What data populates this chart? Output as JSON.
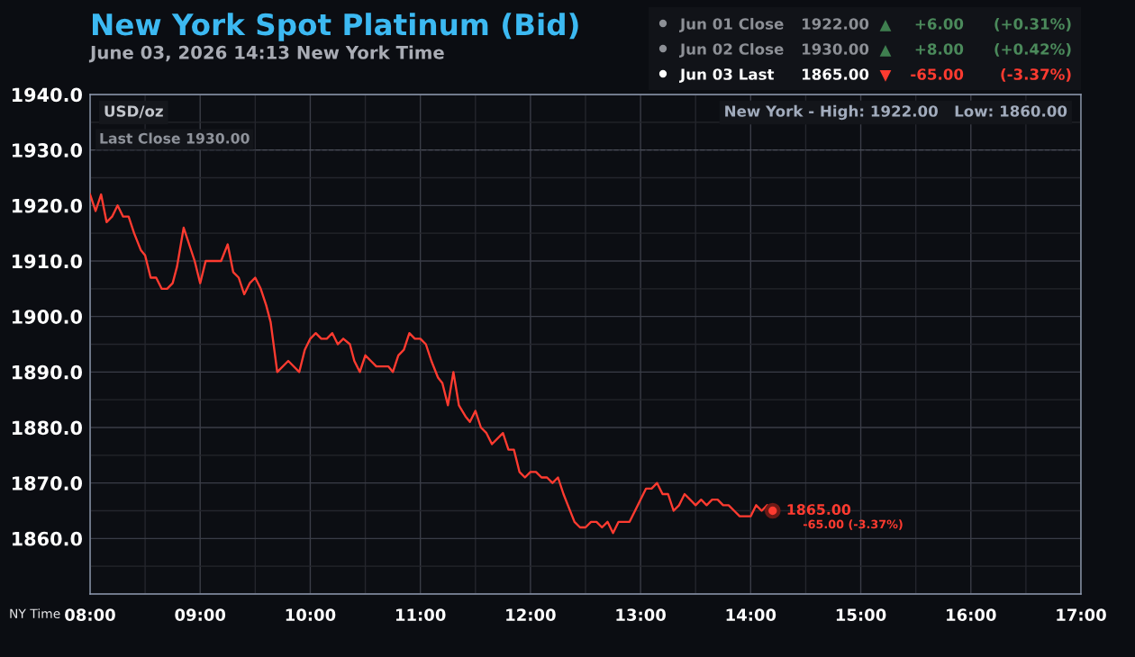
{
  "chart_data": {
    "type": "line",
    "title": "New York Spot Platinum (Bid)",
    "subtitle": "June 03, 2026 14:13 New York Time",
    "xlabel": "NY Time",
    "ylabel": "USD/oz",
    "series": [
      {
        "color": "#ff3b30",
        "x": [
          8.0,
          8.05,
          8.1,
          8.15,
          8.2,
          8.25,
          8.3,
          8.35,
          8.4,
          8.46,
          8.5,
          8.55,
          8.6,
          8.65,
          8.7,
          8.75,
          8.79,
          8.85,
          8.9,
          8.95,
          9.0,
          9.05,
          9.19,
          9.25,
          9.3,
          9.35,
          9.4,
          9.45,
          9.5,
          9.55,
          9.6,
          9.64,
          9.7,
          9.8,
          9.9,
          9.95,
          10.0,
          10.05,
          10.1,
          10.15,
          10.2,
          10.25,
          10.3,
          10.36,
          10.4,
          10.45,
          10.5,
          10.55,
          10.6,
          10.71,
          10.75,
          10.8,
          10.85,
          10.9,
          10.95,
          11.0,
          11.05,
          11.1,
          11.16,
          11.2,
          11.25,
          11.3,
          11.35,
          11.41,
          11.45,
          11.5,
          11.55,
          11.6,
          11.65,
          11.75,
          11.8,
          11.85,
          11.9,
          11.95,
          12.0,
          12.05,
          12.1,
          12.15,
          12.2,
          12.25,
          12.3,
          12.34,
          12.4,
          12.45,
          12.5,
          12.55,
          12.6,
          12.65,
          12.7,
          12.75,
          12.8,
          12.9,
          12.95,
          13.05,
          13.1,
          13.15,
          13.2,
          13.25,
          13.3,
          13.35,
          13.4,
          13.45,
          13.5,
          13.55,
          13.6,
          13.65,
          13.7,
          13.75,
          13.8,
          13.85,
          13.9,
          14.0,
          14.05,
          14.1,
          14.15,
          14.2
        ],
        "values": [
          1922,
          1919,
          1922,
          1917,
          1918,
          1920,
          1918,
          1918,
          1915,
          1912,
          1911,
          1907,
          1907,
          1905,
          1905,
          1906,
          1909,
          1916,
          1913,
          1910,
          1906,
          1910,
          1910,
          1913,
          1908,
          1907,
          1904,
          1906,
          1907,
          1905,
          1902,
          1899,
          1890,
          1892,
          1890,
          1894,
          1896,
          1897,
          1896,
          1896,
          1897,
          1895,
          1896,
          1895,
          1892,
          1890,
          1893,
          1892,
          1891,
          1891,
          1890,
          1893,
          1894,
          1897,
          1896,
          1896,
          1895,
          1892,
          1889,
          1888,
          1884,
          1890,
          1884,
          1882,
          1881,
          1883,
          1880,
          1879,
          1877,
          1879,
          1876,
          1876,
          1872,
          1871,
          1872,
          1872,
          1871,
          1871,
          1870,
          1871,
          1868,
          1866,
          1863,
          1862,
          1862,
          1863,
          1863,
          1862,
          1863,
          1861,
          1863,
          1863,
          1865,
          1869,
          1869,
          1870,
          1868,
          1868,
          1865,
          1866,
          1868,
          1867,
          1866,
          1867,
          1866,
          1867,
          1867,
          1866,
          1866,
          1865,
          1864,
          1864,
          1866,
          1865,
          1866,
          1865
        ]
      },
      {
        "type": "scatter",
        "color": "#ff3b30",
        "marker": "circle",
        "x": [
          14.2
        ],
        "values": [
          1865
        ],
        "value_labels": [
          "1865.00"
        ]
      }
    ],
    "xlim": [
      8,
      17
    ],
    "xticks": [
      {
        "value": 8,
        "label": "08:00"
      },
      {
        "value": 8.5,
        "label": null
      },
      {
        "value": 9,
        "label": "09:00"
      },
      {
        "value": 9.5,
        "label": null
      },
      {
        "value": 10,
        "label": "10:00"
      },
      {
        "value": 10.5,
        "label": null
      },
      {
        "value": 11,
        "label": "11:00"
      },
      {
        "value": 11.5,
        "label": null
      },
      {
        "value": 12,
        "label": "12:00"
      },
      {
        "value": 12.5,
        "label": null
      },
      {
        "value": 13,
        "label": "13:00"
      },
      {
        "value": 13.5,
        "label": null
      },
      {
        "value": 14,
        "label": "14:00"
      },
      {
        "value": 14.5,
        "label": null
      },
      {
        "value": 15,
        "label": "15:00"
      },
      {
        "value": 15.5,
        "label": null
      },
      {
        "value": 16,
        "label": "16:00"
      },
      {
        "value": 16.5,
        "label": null
      },
      {
        "value": 17,
        "label": "17:00"
      }
    ],
    "ylim": [
      1850,
      1940
    ],
    "yticks": [
      {
        "value": 1850,
        "label": null
      },
      {
        "value": 1855,
        "label": null
      },
      {
        "value": 1860,
        "label": "1860.0"
      },
      {
        "value": 1865,
        "label": null
      },
      {
        "value": 1870,
        "label": "1870.0"
      },
      {
        "value": 1875,
        "label": null
      },
      {
        "value": 1880,
        "label": "1880.0"
      },
      {
        "value": 1885,
        "label": null
      },
      {
        "value": 1890,
        "label": "1890.0"
      },
      {
        "value": 1895,
        "label": null
      },
      {
        "value": 1900,
        "label": "1900.0"
      },
      {
        "value": 1905,
        "label": null
      },
      {
        "value": 1910,
        "label": "1910.0"
      },
      {
        "value": 1915,
        "label": null
      },
      {
        "value": 1920,
        "label": "1920.0"
      },
      {
        "value": 1925,
        "label": null
      },
      {
        "value": 1930,
        "label": "1930.0"
      },
      {
        "value": 1935,
        "label": null
      },
      {
        "value": 1940,
        "label": "1940.0"
      }
    ],
    "grid": true,
    "ref_lines": [
      {
        "axis": "y",
        "value": 1930,
        "label": "Last Close 1930.00",
        "color": "#4a4e58",
        "line_style": "dashed"
      }
    ],
    "annotations": [
      "Jun 01 Close",
      "1922.00",
      "▲",
      "+6.00",
      "(+0.31%)",
      "Jun 02 Close",
      "1930.00",
      "▲",
      "+8.00",
      "(+0.42%)",
      "Jun 03 Last",
      "1865.00",
      "▼",
      "-65.00",
      "(-3.37%)",
      "New York - High: 1922.00   Low: 1860.00",
      {
        "text": "-65.00 (-3.37%)",
        "x": 14.2,
        "y": 1865
      }
    ]
  }
}
